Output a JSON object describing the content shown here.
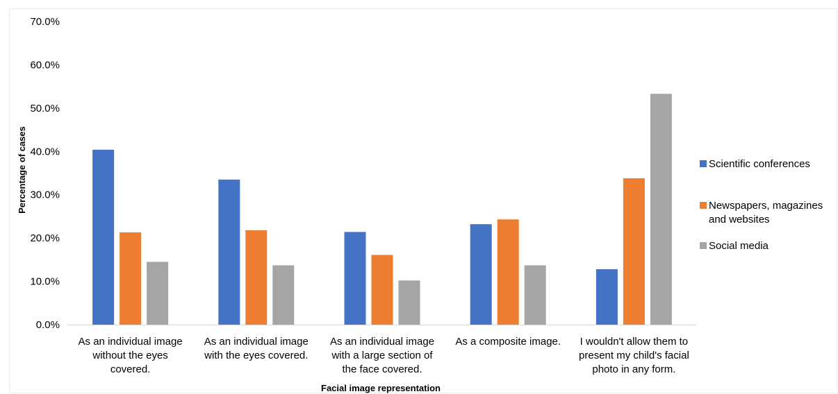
{
  "chart_data": {
    "type": "bar",
    "title": "",
    "xlabel": "Facial image representation",
    "ylabel": "Percentage of cases",
    "ylim": [
      0,
      70
    ],
    "y_ticks": [
      "0.0%",
      "10.0%",
      "20.0%",
      "30.0%",
      "40.0%",
      "50.0%",
      "60.0%",
      "70.0%"
    ],
    "categories": [
      [
        "As an individual image",
        "without the eyes",
        "covered."
      ],
      [
        "As an individual image",
        "with the eyes covered."
      ],
      [
        "As an individual image",
        "with a large section of",
        "the face covered."
      ],
      [
        "As a composite image."
      ],
      [
        "I wouldn't allow them to",
        "present my child's facial",
        "photo in any form."
      ]
    ],
    "series": [
      {
        "name": "Scientific conferences",
        "color": "#4472C4",
        "values": [
          40.4,
          33.5,
          21.4,
          23.2,
          12.8
        ]
      },
      {
        "name": "Newspapers, magazines and websites",
        "legend_lines": [
          "Newspapers, magazines",
          "and websites"
        ],
        "color": "#ED7D31",
        "values": [
          21.3,
          21.8,
          16.1,
          24.3,
          33.8
        ]
      },
      {
        "name": "Social media",
        "color": "#A5A5A5",
        "values": [
          14.5,
          13.7,
          10.2,
          13.7,
          53.3
        ]
      }
    ],
    "grid": false,
    "legend_position": "right"
  }
}
